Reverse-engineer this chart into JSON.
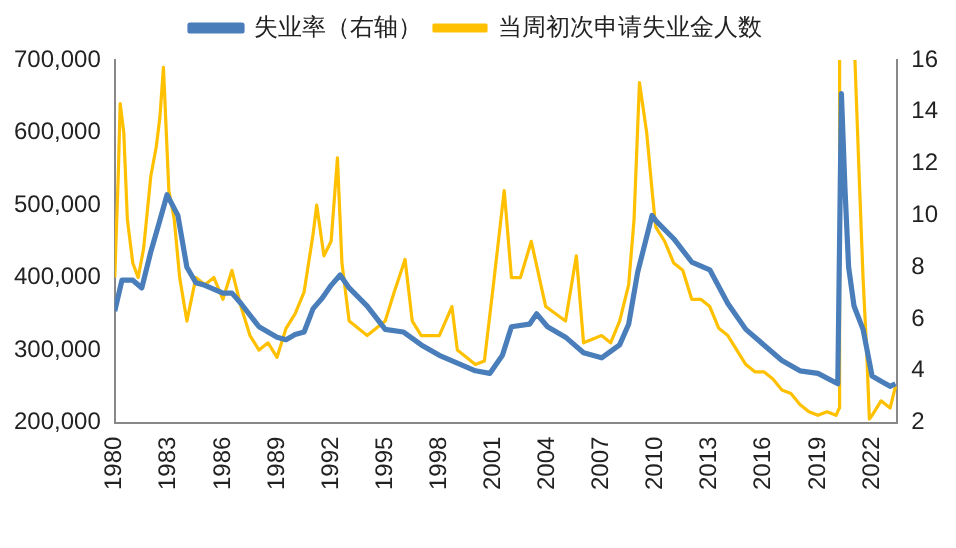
{
  "chart_data": {
    "type": "line",
    "legend": "top",
    "grid": false,
    "marker": "none",
    "line_style": "solid",
    "xlim": [
      1980,
      2023.4
    ],
    "xticks": [
      1980,
      1983,
      1986,
      1989,
      1992,
      1995,
      1998,
      2001,
      2004,
      2007,
      2010,
      2013,
      2016,
      2019,
      2022
    ],
    "ylim": [
      200000,
      700000
    ],
    "yticks": [
      {
        "value": 200000,
        "label": "200,000"
      },
      {
        "value": 300000,
        "label": "300,000"
      },
      {
        "value": 400000,
        "label": "400,000"
      },
      {
        "value": 500000,
        "label": "500,000"
      },
      {
        "value": 600000,
        "label": "600,000"
      },
      {
        "value": 700000,
        "label": "700,000"
      }
    ],
    "y2lim": [
      2,
      16
    ],
    "y2ticks": [
      2,
      4,
      6,
      8,
      10,
      12,
      14,
      16
    ],
    "series": [
      {
        "name": "当周初次申请失业金人数",
        "color": "#ffc000",
        "x": [
          1980.0,
          1980.2,
          1980.3,
          1980.5,
          1980.7,
          1981.0,
          1981.3,
          1981.6,
          1982.0,
          1982.3,
          1982.5,
          1982.7,
          1983.0,
          1983.3,
          1983.6,
          1984.0,
          1984.5,
          1985.0,
          1985.5,
          1986.0,
          1986.5,
          1987.0,
          1987.5,
          1988.0,
          1988.5,
          1989.0,
          1989.5,
          1990.0,
          1990.5,
          1991.0,
          1991.2,
          1991.6,
          1992.0,
          1992.35,
          1992.6,
          1993.0,
          1993.5,
          1994.0,
          1994.5,
          1995.0,
          1995.5,
          1996.1,
          1996.5,
          1997.0,
          1997.5,
          1998.0,
          1998.7,
          1999.0,
          1999.5,
          2000.0,
          2000.5,
          2001.0,
          2001.6,
          2002.0,
          2002.5,
          2003.1,
          2003.9,
          2005.0,
          2005.6,
          2006.0,
          2007.0,
          2007.5,
          2008.0,
          2008.5,
          2008.8,
          2009.1,
          2009.5,
          2009.8,
          2010.0,
          2010.5,
          2011.0,
          2011.5,
          2012.0,
          2012.5,
          2013.0,
          2013.5,
          2014.0,
          2014.5,
          2015.0,
          2015.5,
          2016.0,
          2016.5,
          2017.0,
          2017.5,
          2018.0,
          2018.5,
          2019.0,
          2019.5,
          2020.0,
          2020.18,
          2020.2,
          2020.6,
          2021.05,
          2021.3,
          2021.5,
          2021.7,
          2021.85,
          2022.0,
          2022.5,
          2023.0,
          2023.3
        ],
        "values": [
          400000,
          545000,
          640000,
          600000,
          480000,
          420000,
          400000,
          440000,
          540000,
          580000,
          620000,
          690000,
          520000,
          480000,
          400000,
          340000,
          400000,
          390000,
          400000,
          370000,
          410000,
          360000,
          320000,
          300000,
          310000,
          290000,
          330000,
          350000,
          380000,
          460000,
          500000,
          430000,
          450000,
          565000,
          420000,
          340000,
          330000,
          320000,
          330000,
          340000,
          380000,
          425000,
          340000,
          320000,
          320000,
          320000,
          360000,
          300000,
          290000,
          280000,
          285000,
          390000,
          520000,
          400000,
          400000,
          450000,
          360000,
          340000,
          430000,
          310000,
          320000,
          310000,
          340000,
          390000,
          480000,
          669000,
          600000,
          520000,
          470000,
          450000,
          420000,
          410000,
          370000,
          370000,
          360000,
          330000,
          320000,
          300000,
          280000,
          270000,
          270000,
          260000,
          245000,
          240000,
          225000,
          215000,
          210000,
          215000,
          210000,
          220000,
          700000,
          null,
          700000,
          530000,
          400000,
          300000,
          205000,
          210000,
          230000,
          220000,
          250000
        ]
      },
      {
        "name": "失业率（右轴）",
        "color": "#4a7ebb",
        "axis": "y2",
        "x": [
          1980.0,
          1980.4,
          1981.0,
          1981.5,
          1982.0,
          1982.5,
          1982.9,
          1983.5,
          1984.0,
          1984.5,
          1985.0,
          1986.0,
          1986.5,
          1987.0,
          1988.0,
          1989.0,
          1989.5,
          1990.0,
          1990.5,
          1991.0,
          1991.5,
          1992.0,
          1992.5,
          1993.0,
          1994.0,
          1995.0,
          1996.0,
          1997.0,
          1998.0,
          1999.0,
          2000.0,
          2000.8,
          2001.5,
          2002.0,
          2003.0,
          2003.4,
          2004.0,
          2005.0,
          2006.0,
          2007.0,
          2008.0,
          2008.5,
          2009.0,
          2009.8,
          2010.0,
          2011.0,
          2012.0,
          2013.0,
          2014.0,
          2015.0,
          2016.0,
          2017.0,
          2018.0,
          2019.0,
          2020.1,
          2020.3,
          2020.5,
          2020.7,
          2021.0,
          2021.5,
          2022.0,
          2022.5,
          2023.0,
          2023.3
        ],
        "values": [
          6.3,
          7.5,
          7.5,
          7.2,
          8.6,
          9.8,
          10.8,
          10.0,
          8.0,
          7.4,
          7.3,
          7.0,
          7.0,
          6.6,
          5.7,
          5.3,
          5.2,
          5.4,
          5.5,
          6.4,
          6.8,
          7.3,
          7.7,
          7.2,
          6.5,
          5.6,
          5.5,
          5.0,
          4.6,
          4.3,
          4.0,
          3.9,
          4.6,
          5.7,
          5.8,
          6.2,
          5.7,
          5.3,
          4.7,
          4.5,
          5.0,
          5.8,
          7.8,
          10.0,
          9.8,
          9.1,
          8.2,
          7.9,
          6.6,
          5.6,
          5.0,
          4.4,
          4.0,
          3.9,
          3.5,
          14.7,
          11.0,
          8.0,
          6.5,
          5.6,
          3.8,
          3.6,
          3.4,
          3.5
        ]
      }
    ]
  }
}
